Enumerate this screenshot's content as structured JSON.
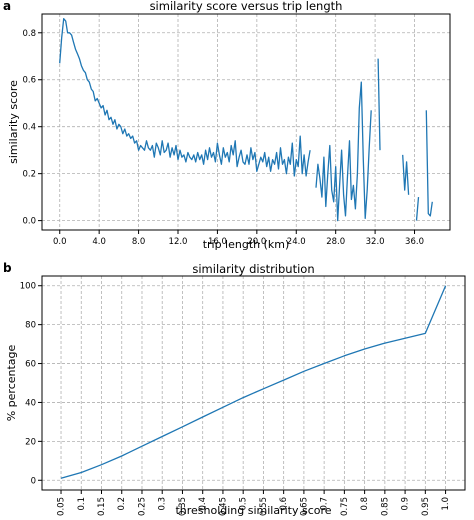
{
  "chart_data": [
    {
      "type": "line",
      "panel_label": "a",
      "title": "similarity score versus trip length",
      "xlabel": "trip length (km)",
      "ylabel": "similarity score",
      "xlim": [
        -1.8,
        39.6
      ],
      "ylim": [
        -0.04,
        0.88
      ],
      "xticks": [
        0.0,
        4.0,
        8.0,
        12.0,
        16.0,
        20.0,
        24.0,
        28.0,
        32.0,
        36.0
      ],
      "xtick_labels": [
        "0.0",
        "4.0",
        "8.0",
        "12.0",
        "16.0",
        "20.0",
        "24.0",
        "28.0",
        "32.0",
        "36.0"
      ],
      "yticks": [
        0.0,
        0.2,
        0.4,
        0.6,
        0.8
      ],
      "ytick_labels": [
        "0.0",
        "0.2",
        "0.4",
        "0.6",
        "0.8"
      ],
      "grid": true,
      "color": "#1f77b4",
      "segments": [
        [
          [
            0.0,
            0.67
          ],
          [
            0.2,
            0.78
          ],
          [
            0.4,
            0.86
          ],
          [
            0.6,
            0.85
          ],
          [
            0.8,
            0.8
          ],
          [
            1.0,
            0.8
          ],
          [
            1.2,
            0.79
          ],
          [
            1.4,
            0.76
          ],
          [
            1.6,
            0.73
          ],
          [
            1.8,
            0.71
          ],
          [
            2.0,
            0.69
          ],
          [
            2.2,
            0.66
          ],
          [
            2.4,
            0.64
          ],
          [
            2.6,
            0.63
          ],
          [
            2.8,
            0.6
          ],
          [
            3.0,
            0.59
          ],
          [
            3.2,
            0.56
          ],
          [
            3.4,
            0.55
          ],
          [
            3.6,
            0.51
          ],
          [
            3.8,
            0.52
          ],
          [
            4.0,
            0.5
          ],
          [
            4.2,
            0.48
          ],
          [
            4.4,
            0.49
          ],
          [
            4.6,
            0.45
          ],
          [
            4.8,
            0.47
          ],
          [
            5.0,
            0.43
          ],
          [
            5.2,
            0.44
          ],
          [
            5.4,
            0.41
          ],
          [
            5.6,
            0.43
          ],
          [
            5.8,
            0.39
          ],
          [
            6.0,
            0.41
          ],
          [
            6.2,
            0.4
          ],
          [
            6.4,
            0.37
          ],
          [
            6.6,
            0.39
          ],
          [
            6.8,
            0.36
          ],
          [
            7.0,
            0.37
          ],
          [
            7.2,
            0.35
          ],
          [
            7.4,
            0.36
          ],
          [
            7.6,
            0.33
          ],
          [
            7.8,
            0.34
          ],
          [
            8.0,
            0.3
          ],
          [
            8.2,
            0.32
          ],
          [
            8.4,
            0.31
          ],
          [
            8.6,
            0.3
          ],
          [
            8.8,
            0.34
          ],
          [
            9.0,
            0.31
          ],
          [
            9.2,
            0.3
          ],
          [
            9.4,
            0.32
          ],
          [
            9.6,
            0.27
          ],
          [
            9.8,
            0.33
          ],
          [
            10.0,
            0.31
          ],
          [
            10.2,
            0.28
          ],
          [
            10.4,
            0.34
          ],
          [
            10.6,
            0.29
          ],
          [
            10.8,
            0.3
          ],
          [
            11.0,
            0.33
          ],
          [
            11.2,
            0.27
          ],
          [
            11.4,
            0.31
          ],
          [
            11.6,
            0.28
          ],
          [
            11.8,
            0.32
          ],
          [
            12.0,
            0.26
          ],
          [
            12.2,
            0.3
          ],
          [
            12.4,
            0.27
          ],
          [
            12.6,
            0.28
          ],
          [
            12.8,
            0.25
          ],
          [
            13.0,
            0.29
          ],
          [
            13.2,
            0.27
          ],
          [
            13.4,
            0.26
          ],
          [
            13.6,
            0.28
          ],
          [
            13.8,
            0.25
          ],
          [
            14.0,
            0.29
          ],
          [
            14.2,
            0.26
          ],
          [
            14.4,
            0.28
          ],
          [
            14.6,
            0.24
          ],
          [
            14.8,
            0.3
          ],
          [
            15.0,
            0.26
          ],
          [
            15.2,
            0.31
          ],
          [
            15.4,
            0.27
          ],
          [
            15.6,
            0.29
          ],
          [
            15.8,
            0.25
          ],
          [
            16.0,
            0.33
          ],
          [
            16.2,
            0.28
          ],
          [
            16.4,
            0.24
          ],
          [
            16.6,
            0.31
          ],
          [
            16.8,
            0.27
          ],
          [
            17.0,
            0.29
          ],
          [
            17.2,
            0.25
          ],
          [
            17.4,
            0.32
          ],
          [
            17.6,
            0.28
          ],
          [
            17.8,
            0.34
          ],
          [
            18.0,
            0.23
          ],
          [
            18.2,
            0.27
          ],
          [
            18.4,
            0.3
          ],
          [
            18.6,
            0.25
          ],
          [
            18.8,
            0.24
          ],
          [
            19.0,
            0.28
          ],
          [
            19.2,
            0.24
          ],
          [
            19.4,
            0.31
          ],
          [
            19.6,
            0.26
          ],
          [
            19.8,
            0.29
          ],
          [
            20.0,
            0.21
          ],
          [
            20.2,
            0.24
          ],
          [
            20.4,
            0.27
          ],
          [
            20.6,
            0.25
          ],
          [
            20.8,
            0.29
          ],
          [
            21.0,
            0.23
          ],
          [
            21.2,
            0.27
          ],
          [
            21.4,
            0.21
          ],
          [
            21.6,
            0.26
          ],
          [
            21.8,
            0.24
          ],
          [
            22.0,
            0.29
          ],
          [
            22.2,
            0.22
          ],
          [
            22.4,
            0.31
          ],
          [
            22.6,
            0.24
          ],
          [
            22.8,
            0.26
          ],
          [
            23.0,
            0.2
          ],
          [
            23.2,
            0.27
          ],
          [
            23.4,
            0.24
          ],
          [
            23.6,
            0.33
          ],
          [
            23.8,
            0.19
          ],
          [
            24.0,
            0.26
          ],
          [
            24.2,
            0.23
          ],
          [
            24.4,
            0.36
          ],
          [
            24.6,
            0.2
          ],
          [
            24.8,
            0.28
          ],
          [
            25.0,
            0.19
          ],
          [
            25.2,
            0.25
          ],
          [
            25.4,
            0.3
          ]
        ],
        [
          [
            26.0,
            0.14
          ],
          [
            26.2,
            0.24
          ],
          [
            26.4,
            0.18
          ],
          [
            26.6,
            0.1
          ],
          [
            26.8,
            0.27
          ],
          [
            27.0,
            0.06
          ],
          [
            27.2,
            0.2
          ],
          [
            27.4,
            0.32
          ],
          [
            27.6,
            0.13
          ],
          [
            27.8,
            0.08
          ],
          [
            28.0,
            0.23
          ],
          [
            28.2,
            0.0
          ],
          [
            28.4,
            0.15
          ],
          [
            28.6,
            0.3
          ],
          [
            28.8,
            0.11
          ],
          [
            29.0,
            0.02
          ],
          [
            29.2,
            0.19
          ],
          [
            29.4,
            0.34
          ],
          [
            29.6,
            0.09
          ],
          [
            29.8,
            0.15
          ],
          [
            30.0,
            0.05
          ],
          [
            30.2,
            0.2
          ],
          [
            30.4,
            0.48
          ],
          [
            30.6,
            0.59
          ],
          [
            30.8,
            0.26
          ],
          [
            31.0,
            0.01
          ],
          [
            31.2,
            0.13
          ],
          [
            31.4,
            0.31
          ],
          [
            31.6,
            0.47
          ]
        ],
        [
          [
            32.3,
            0.69
          ],
          [
            32.5,
            0.3
          ]
        ],
        [
          [
            34.8,
            0.28
          ],
          [
            35.0,
            0.13
          ],
          [
            35.2,
            0.25
          ],
          [
            35.4,
            0.11
          ]
        ],
        [
          [
            36.2,
            0.0
          ],
          [
            36.4,
            0.1
          ]
        ],
        [
          [
            37.2,
            0.47
          ],
          [
            37.4,
            0.03
          ],
          [
            37.6,
            0.02
          ],
          [
            37.8,
            0.08
          ]
        ]
      ]
    },
    {
      "type": "line",
      "panel_label": "b",
      "title": "similarity distribution",
      "xlabel": "thresholding similarity score",
      "ylabel": "% percentage",
      "xlim": [
        0.003,
        1.048
      ],
      "ylim": [
        -5,
        105
      ],
      "xticks": [
        0.05,
        0.1,
        0.15,
        0.2,
        0.25,
        0.3,
        0.35,
        0.4,
        0.45,
        0.5,
        0.55,
        0.6,
        0.65,
        0.7,
        0.75,
        0.8,
        0.85,
        0.9,
        0.95,
        1.0
      ],
      "xtick_labels": [
        "0.05",
        "0.1",
        "0.15",
        "0.2",
        "0.25",
        "0.3",
        "0.35",
        "0.4",
        "0.45",
        "0.5",
        "0.55",
        "0.6",
        "0.65",
        "0.7",
        "0.75",
        "0.8",
        "0.85",
        "0.9",
        "0.95",
        "1.0"
      ],
      "yticks": [
        0,
        20,
        40,
        60,
        80,
        100
      ],
      "ytick_labels": [
        "0",
        "20",
        "40",
        "60",
        "80",
        "100"
      ],
      "grid": true,
      "color": "#1f77b4",
      "x": [
        0.05,
        0.1,
        0.15,
        0.2,
        0.25,
        0.3,
        0.35,
        0.4,
        0.45,
        0.5,
        0.55,
        0.6,
        0.65,
        0.7,
        0.75,
        0.8,
        0.85,
        0.9,
        0.95,
        1.0
      ],
      "y": [
        1,
        4,
        8,
        12.5,
        17.5,
        22.5,
        27.5,
        32.5,
        37.5,
        42.5,
        47,
        51.5,
        56,
        60,
        64,
        67.5,
        70.5,
        73,
        75.5,
        100
      ]
    }
  ]
}
